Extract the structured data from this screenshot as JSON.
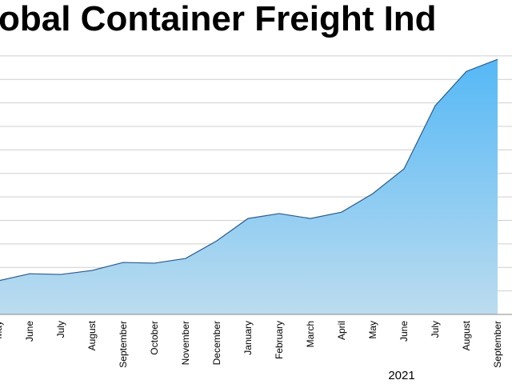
{
  "chart_data": {
    "type": "area",
    "title": "obal Container Freight Ind",
    "categories": [
      "May",
      "June",
      "July",
      "August",
      "September",
      "October",
      "November",
      "December",
      "January",
      "February",
      "March",
      "April",
      "May",
      "June",
      "July",
      "August",
      "September"
    ],
    "group_label": "2021",
    "series": [
      {
        "color": "#2b5b8c",
        "values": [
          1.43,
          1.73,
          1.7,
          1.87,
          2.21,
          2.18,
          2.38,
          3.13,
          4.08,
          4.29,
          4.08,
          4.35,
          5.14,
          6.19,
          8.88,
          10.34,
          10.85
        ]
      }
    ],
    "ylim": [
      0,
      11.3
    ],
    "yticks": [
      0,
      1,
      2,
      3,
      4,
      5,
      6,
      7,
      8,
      9,
      10,
      11
    ],
    "grid": true
  }
}
